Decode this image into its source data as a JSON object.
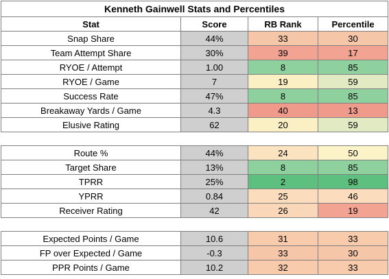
{
  "title": "Kenneth Gainwell Stats and Percentiles",
  "headers": {
    "stat": "Stat",
    "score": "Score",
    "rank": "RB Rank",
    "pct": "Percentile"
  },
  "sections": [
    {
      "rows": [
        {
          "stat": "Snap Share",
          "score": "44%",
          "rank": "33",
          "pct": "30",
          "rank_color": "#f6c6a8",
          "pct_color": "#f6c6a8"
        },
        {
          "stat": "Team Attempt Share",
          "score": "30%",
          "rank": "39",
          "pct": "17",
          "rank_color": "#f2a391",
          "pct_color": "#f2a391"
        },
        {
          "stat": "RYOE / Attempt",
          "score": "1.00",
          "rank": "8",
          "pct": "85",
          "rank_color": "#8fd19e",
          "pct_color": "#8fd19e"
        },
        {
          "stat": "RYOE / Game",
          "score": "7",
          "rank": "19",
          "pct": "59",
          "rank_color": "#fbefc4",
          "pct_color": "#e2eac4"
        },
        {
          "stat": "Success Rate",
          "score": "47%",
          "rank": "8",
          "pct": "85",
          "rank_color": "#8fd19e",
          "pct_color": "#8fd19e"
        },
        {
          "stat": "Breakaway Yards / Game",
          "score": "4.3",
          "rank": "40",
          "pct": "13",
          "rank_color": "#f09a8c",
          "pct_color": "#f09a8c"
        },
        {
          "stat": "Elusive Rating",
          "score": "62",
          "rank": "20",
          "pct": "59",
          "rank_color": "#fbefc4",
          "pct_color": "#e2eac4"
        }
      ]
    },
    {
      "rows": [
        {
          "stat": "Route %",
          "score": "44%",
          "rank": "24",
          "pct": "50",
          "rank_color": "#fbe3c0",
          "pct_color": "#fdf3c8"
        },
        {
          "stat": "Target Share",
          "score": "13%",
          "rank": "8",
          "pct": "85",
          "rank_color": "#8fd19e",
          "pct_color": "#8fd19e"
        },
        {
          "stat": "TPRR",
          "score": "25%",
          "rank": "2",
          "pct": "98",
          "rank_color": "#5ec07f",
          "pct_color": "#5ec07f"
        },
        {
          "stat": "YPRR",
          "score": "0.84",
          "rank": "25",
          "pct": "46",
          "rank_color": "#fbdcbc",
          "pct_color": "#fbdcbc"
        },
        {
          "stat": "Receiver Rating",
          "score": "42",
          "rank": "26",
          "pct": "19",
          "rank_color": "#fad7b8",
          "pct_color": "#f2a391"
        }
      ]
    },
    {
      "rows": [
        {
          "stat": "Expected Points / Game",
          "score": "10.6",
          "rank": "31",
          "pct": "33",
          "rank_color": "#f7cbab",
          "pct_color": "#f7cbab"
        },
        {
          "stat": "FP over Expected / Game",
          "score": "-0.3",
          "rank": "33",
          "pct": "30",
          "rank_color": "#f6c6a8",
          "pct_color": "#f6c6a8"
        },
        {
          "stat": "PPR Points / Game",
          "score": "10.2",
          "rank": "32",
          "pct": "33",
          "rank_color": "#f7cbab",
          "pct_color": "#f7cbab"
        }
      ]
    }
  ]
}
